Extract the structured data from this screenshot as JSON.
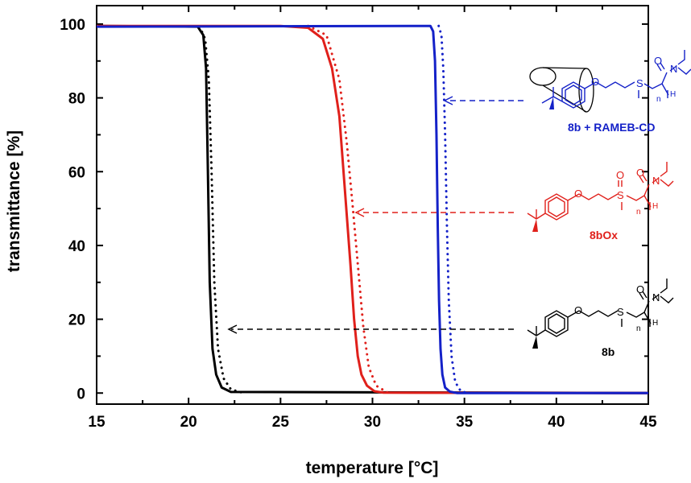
{
  "chart_data": {
    "type": "line",
    "title": "",
    "xlabel": "temperature [°C]",
    "ylabel": "transmittance [%]",
    "xlim": [
      15,
      45
    ],
    "ylim": [
      -3,
      105
    ],
    "x_ticks": [
      15,
      20,
      25,
      30,
      35,
      40,
      45
    ],
    "y_ticks": [
      0,
      20,
      40,
      60,
      80,
      100
    ],
    "grid": false,
    "series": [
      {
        "name": "8b",
        "color": "#000000",
        "style": "solid",
        "x": [
          15,
          20.5,
          20.8,
          20.95,
          21.05,
          21.15,
          21.3,
          21.5,
          21.8,
          22.3,
          45
        ],
        "y": [
          99.5,
          99.3,
          97,
          88,
          60,
          30,
          12,
          5,
          1.5,
          0.3,
          0
        ]
      },
      {
        "name": "8b",
        "color": "#000000",
        "style": "dotted",
        "x": [
          20.6,
          20.9,
          21.1,
          21.25,
          21.4,
          21.6,
          21.9,
          22.3,
          23
        ],
        "y": [
          99.3,
          96,
          85,
          60,
          30,
          12,
          4,
          1,
          0
        ]
      },
      {
        "name": "8bOx",
        "color": "#e0201b",
        "style": "solid",
        "x": [
          15,
          25,
          26.5,
          27.3,
          27.8,
          28.2,
          28.5,
          28.8,
          29.0,
          29.2,
          29.4,
          29.7,
          30.1,
          30.6,
          45
        ],
        "y": [
          99.5,
          99.5,
          99,
          96,
          88,
          75,
          55,
          35,
          20,
          10,
          5,
          2,
          0.5,
          0.1,
          0
        ]
      },
      {
        "name": "8bOx",
        "color": "#e0201b",
        "style": "dotted",
        "x": [
          26.5,
          27.5,
          28.2,
          28.6,
          28.9,
          29.2,
          29.5,
          29.8,
          30.2,
          30.8
        ],
        "y": [
          99.5,
          97,
          85,
          68,
          52,
          35,
          18,
          7,
          2,
          0.2
        ]
      },
      {
        "name": "8b + RAMEB-CD",
        "color": "#1421c8",
        "style": "solid",
        "x": [
          15,
          33.15,
          33.3,
          33.4,
          33.48,
          33.55,
          33.62,
          33.7,
          33.8,
          33.95,
          34.2,
          34.6,
          45
        ],
        "y": [
          99.3,
          99.5,
          98,
          90,
          70,
          45,
          25,
          12,
          5,
          1.5,
          0.4,
          0,
          0
        ]
      },
      {
        "name": "8b + RAMEB-CD",
        "color": "#1421c8",
        "style": "dotted",
        "x": [
          33.6,
          33.75,
          33.85,
          33.95,
          34.05,
          34.15,
          34.3,
          34.5,
          34.8,
          35.2
        ],
        "y": [
          99.5,
          97,
          88,
          70,
          45,
          25,
          10,
          3,
          0.5,
          0
        ]
      }
    ],
    "annotations": [
      "8b + RAMEB-CD",
      "8bOx",
      "8b"
    ]
  },
  "structures": {
    "atoms": {
      "O": "O",
      "N": "N",
      "S": "S",
      "H": "H",
      "n": "n"
    }
  }
}
